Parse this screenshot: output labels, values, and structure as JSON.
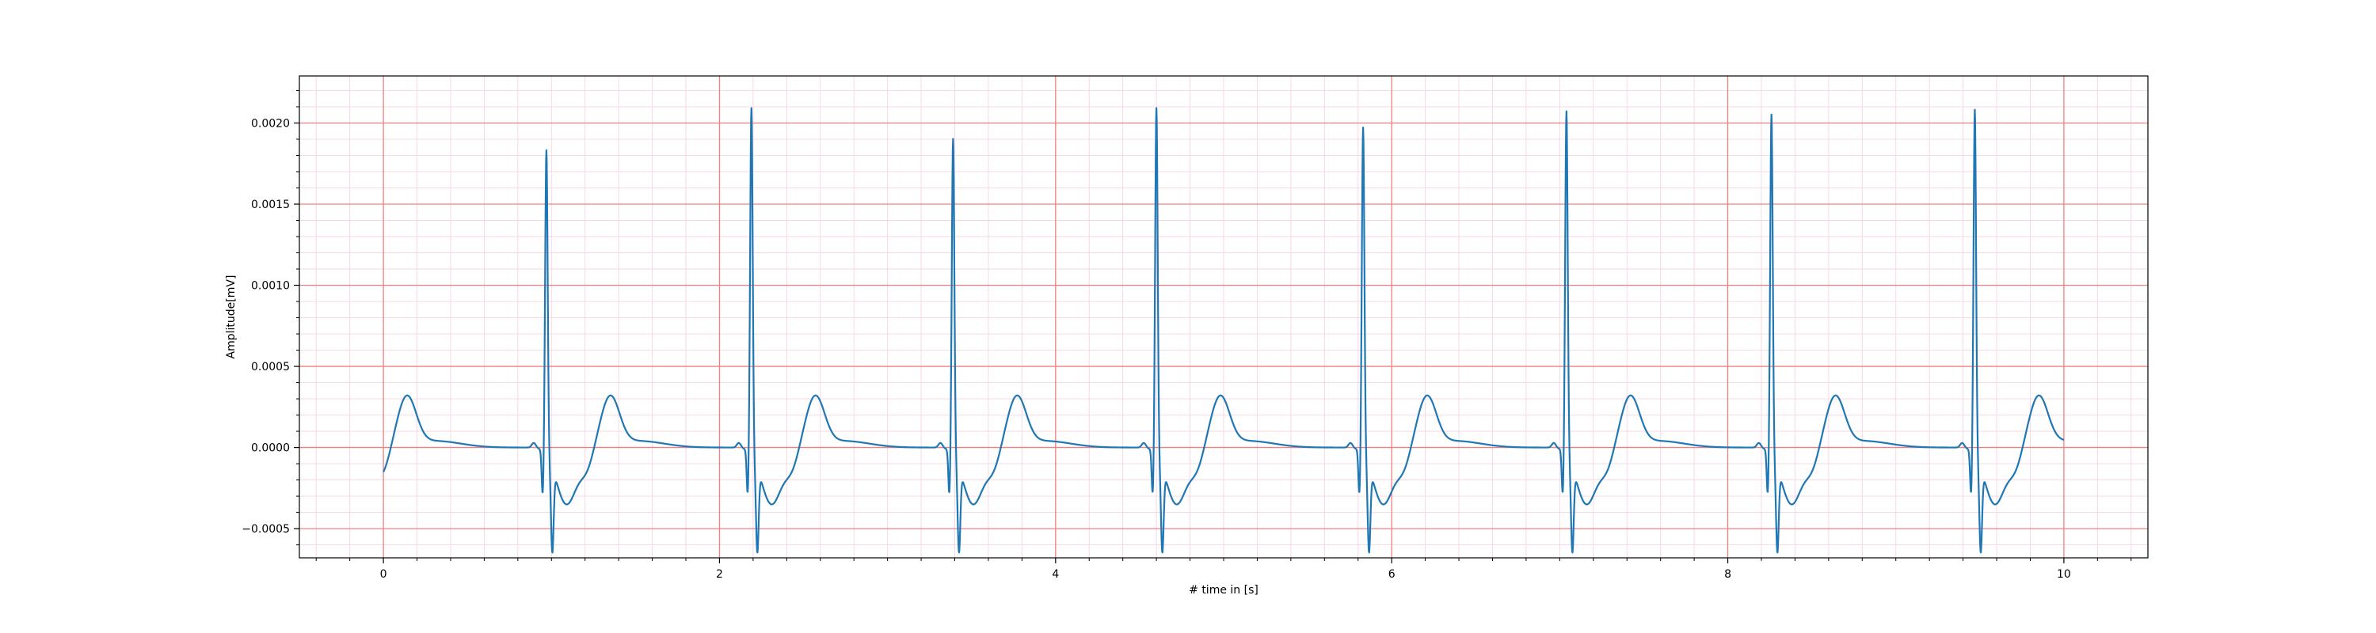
{
  "chart_data": {
    "type": "line",
    "title": "",
    "xlabel": "# time in [s]",
    "ylabel": "Amplitude[mV]",
    "xlim": [
      -0.5,
      10.5
    ],
    "ylim": [
      -0.00068,
      0.00229
    ],
    "x_ticks": [
      0,
      2,
      4,
      6,
      8,
      10
    ],
    "x_tick_labels": [
      "0",
      "2",
      "4",
      "6",
      "8",
      "10"
    ],
    "y_ticks": [
      -0.0005,
      0.0,
      0.0005,
      0.001,
      0.0015,
      0.002
    ],
    "y_tick_labels": [
      "−0.0005",
      "0.0000",
      "0.0005",
      "0.0010",
      "0.0015",
      "0.0020"
    ],
    "grid": true,
    "grid_major_color": "#f08080",
    "grid_minor_color": "#f7d4e2",
    "line_color": "#1f77b4",
    "series": [
      {
        "x_range": [
          0,
          10
        ],
        "beat_r_peak_times": [
          0.97,
          2.19,
          3.39,
          4.6,
          5.83,
          7.04,
          8.26,
          9.47
        ],
        "beat_r_peak_amplitudes": [
          0.00188,
          0.00214,
          0.00195,
          0.00214,
          0.00202,
          0.00212,
          0.0021,
          0.00213
        ],
        "key_points": [
          {
            "x": 0.0,
            "y": -7e-05
          },
          {
            "x": 0.08,
            "y": -0.00011
          },
          {
            "x": 0.16,
            "y": 0.00015
          },
          {
            "x": 0.4,
            "y": 2e-05
          },
          {
            "x": 0.97,
            "y": 0.00188
          },
          {
            "x": 1.0,
            "y": -0.00048
          },
          {
            "x": 1.36,
            "y": 0.00015
          },
          {
            "x": 2.19,
            "y": 0.00214
          },
          {
            "x": 2.23,
            "y": -0.00055
          },
          {
            "x": 2.57,
            "y": 0.00018
          },
          {
            "x": 3.39,
            "y": 0.00195
          },
          {
            "x": 3.43,
            "y": -0.0005
          },
          {
            "x": 3.79,
            "y": 0.00016
          },
          {
            "x": 4.6,
            "y": 0.00214
          },
          {
            "x": 4.64,
            "y": -0.00054
          },
          {
            "x": 4.99,
            "y": 0.00018
          },
          {
            "x": 5.83,
            "y": 0.00202
          },
          {
            "x": 5.87,
            "y": -0.0005
          },
          {
            "x": 6.21,
            "y": 0.00017
          },
          {
            "x": 7.04,
            "y": 0.00212
          },
          {
            "x": 7.08,
            "y": -0.00053
          },
          {
            "x": 7.43,
            "y": 0.00018
          },
          {
            "x": 8.26,
            "y": 0.0021
          },
          {
            "x": 8.3,
            "y": -0.00053
          },
          {
            "x": 8.64,
            "y": 0.00018
          },
          {
            "x": 9.47,
            "y": 0.00213
          },
          {
            "x": 9.51,
            "y": -0.00052
          },
          {
            "x": 9.85,
            "y": 0.00018
          },
          {
            "x": 10.0,
            "y": 0.0
          }
        ]
      }
    ]
  }
}
